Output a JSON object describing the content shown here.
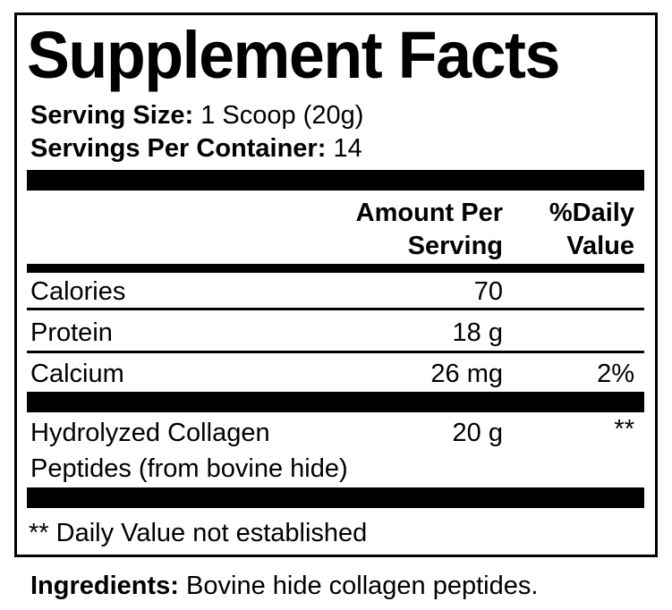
{
  "title": "Supplement Facts",
  "serving_size": {
    "label": "Serving Size:",
    "value": "1 Scoop (20g)"
  },
  "servings_per_container": {
    "label": "Servings Per Container:",
    "value": "14"
  },
  "columns": {
    "amount_line1": "Amount Per",
    "amount_line2": "Serving",
    "dv_line1": "%Daily",
    "dv_line2": "Value"
  },
  "rows": [
    {
      "name": "Calories",
      "amount": "70",
      "dv": ""
    },
    {
      "name": "Protein",
      "amount": "18 g",
      "dv": ""
    },
    {
      "name": "Calcium",
      "amount": "26 mg",
      "dv": "2%"
    },
    {
      "name_line1": "Hydrolyzed Collagen",
      "name_line2": "Peptides (from bovine hide)",
      "amount": "20 g",
      "dv": "**"
    }
  ],
  "footnote": "** Daily Value not established",
  "ingredients": {
    "label": "Ingredients:",
    "value": "Bovine hide collagen peptides."
  }
}
